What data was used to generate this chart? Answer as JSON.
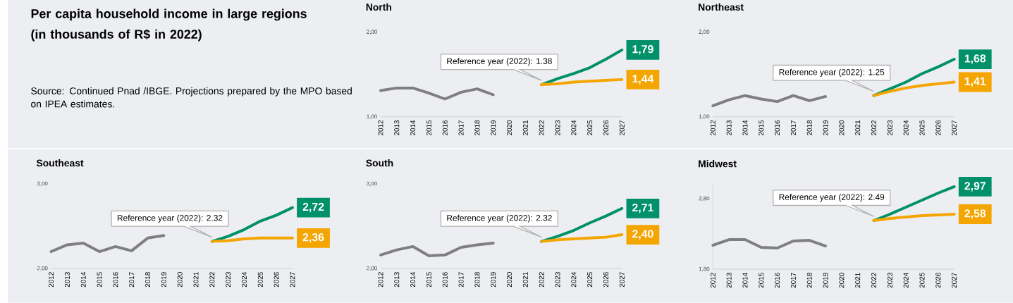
{
  "chart_data": [
    {
      "type": "other",
      "title": "Per capita household income in large regions (in thousands of R$ in 2022)",
      "annotations": [
        "Source: Continued Pnad /IBGE. Projections prepared by the MPO based on IPEA estimates."
      ]
    },
    {
      "type": "line",
      "title": "North",
      "categories": [
        "2012",
        "2013",
        "2014",
        "2015",
        "2016",
        "2017",
        "2018",
        "2019",
        "2020",
        "2021",
        "2022",
        "2023",
        "2024",
        "2025",
        "2026",
        "2027"
      ],
      "ylim": [
        1.0,
        2.0
      ],
      "yticks": [
        {
          "value": 1.0,
          "label": "1,00"
        },
        {
          "value": 2.0,
          "label": "2,00"
        }
      ],
      "series": [
        {
          "color": "#7f7f7f",
          "values": [
            1.31,
            1.34,
            1.34,
            1.28,
            1.21,
            1.29,
            1.33,
            1.26,
            null,
            null,
            null,
            null,
            null,
            null,
            null,
            null
          ]
        },
        {
          "color": "#00906a",
          "values": [
            null,
            null,
            null,
            null,
            null,
            null,
            null,
            null,
            null,
            null,
            1.38,
            1.45,
            1.51,
            1.58,
            1.68,
            1.79
          ],
          "value_labels": [
            null,
            null,
            null,
            null,
            null,
            null,
            null,
            null,
            null,
            null,
            null,
            null,
            null,
            null,
            null,
            "1,79"
          ]
        },
        {
          "color": "#f5a500",
          "values": [
            null,
            null,
            null,
            null,
            null,
            null,
            null,
            null,
            null,
            null,
            1.38,
            1.39,
            1.41,
            1.42,
            1.43,
            1.44
          ],
          "value_labels": [
            null,
            null,
            null,
            null,
            null,
            null,
            null,
            null,
            null,
            null,
            null,
            null,
            null,
            null,
            null,
            "1,44"
          ]
        }
      ],
      "annotations": [
        {
          "text": "Reference year (2022): 1.38",
          "x": "2022",
          "y": 1.38
        }
      ]
    },
    {
      "type": "line",
      "title": "Northeast",
      "categories": [
        "2012",
        "2013",
        "2014",
        "2015",
        "2016",
        "2017",
        "2018",
        "2019",
        "2020",
        "2021",
        "2022",
        "2023",
        "2024",
        "2025",
        "2026",
        "2027"
      ],
      "ylim": [
        1.0,
        2.0
      ],
      "yticks": [
        {
          "value": 1.0,
          "label": "1,00"
        },
        {
          "value": 2.0,
          "label": "2,00"
        }
      ],
      "series": [
        {
          "color": "#7f7f7f",
          "values": [
            1.13,
            1.2,
            1.25,
            1.21,
            1.18,
            1.25,
            1.19,
            1.24,
            null,
            null,
            null,
            null,
            null,
            null,
            null,
            null
          ]
        },
        {
          "color": "#00906a",
          "values": [
            null,
            null,
            null,
            null,
            null,
            null,
            null,
            null,
            null,
            null,
            1.25,
            1.33,
            1.41,
            1.51,
            1.59,
            1.68
          ],
          "value_labels": [
            null,
            null,
            null,
            null,
            null,
            null,
            null,
            null,
            null,
            null,
            null,
            null,
            null,
            null,
            null,
            "1,68"
          ]
        },
        {
          "color": "#f5a500",
          "values": [
            null,
            null,
            null,
            null,
            null,
            null,
            null,
            null,
            null,
            null,
            1.25,
            1.3,
            1.34,
            1.37,
            1.39,
            1.41
          ],
          "value_labels": [
            null,
            null,
            null,
            null,
            null,
            null,
            null,
            null,
            null,
            null,
            null,
            null,
            null,
            null,
            null,
            "1,41"
          ]
        }
      ],
      "annotations": [
        {
          "text": "Reference year (2022): 1.25",
          "x": "2022",
          "y": 1.25
        }
      ]
    },
    {
      "type": "line",
      "title": "Southeast",
      "categories": [
        "2012",
        "2013",
        "2014",
        "2015",
        "2016",
        "2017",
        "2018",
        "2019",
        "2020",
        "2021",
        "2022",
        "2023",
        "2024",
        "2025",
        "2026",
        "2027"
      ],
      "ylim": [
        2.0,
        3.0
      ],
      "yticks": [
        {
          "value": 2.0,
          "label": "2,00"
        },
        {
          "value": 3.0,
          "label": "3,00"
        }
      ],
      "series": [
        {
          "color": "#7f7f7f",
          "values": [
            2.2,
            2.28,
            2.3,
            2.2,
            2.26,
            2.21,
            2.36,
            2.39,
            null,
            null,
            null,
            null,
            null,
            null,
            null,
            null
          ]
        },
        {
          "color": "#00906a",
          "values": [
            null,
            null,
            null,
            null,
            null,
            null,
            null,
            null,
            null,
            null,
            2.32,
            2.38,
            2.46,
            2.56,
            2.63,
            2.72
          ],
          "value_labels": [
            null,
            null,
            null,
            null,
            null,
            null,
            null,
            null,
            null,
            null,
            null,
            null,
            null,
            null,
            null,
            "2,72"
          ]
        },
        {
          "color": "#f5a500",
          "values": [
            null,
            null,
            null,
            null,
            null,
            null,
            null,
            null,
            null,
            null,
            2.32,
            2.33,
            2.35,
            2.36,
            2.36,
            2.36
          ],
          "value_labels": [
            null,
            null,
            null,
            null,
            null,
            null,
            null,
            null,
            null,
            null,
            null,
            null,
            null,
            null,
            null,
            "2,36"
          ]
        }
      ],
      "annotations": [
        {
          "text": "Reference year (2022): 2.32",
          "x": "2022",
          "y": 2.32
        }
      ]
    },
    {
      "type": "line",
      "title": "South",
      "categories": [
        "2012",
        "2013",
        "2014",
        "2015",
        "2016",
        "2017",
        "2018",
        "2019",
        "2020",
        "2021",
        "2022",
        "2023",
        "2024",
        "2025",
        "2026",
        "2027"
      ],
      "ylim": [
        2.0,
        3.0
      ],
      "yticks": [
        {
          "value": 2.0,
          "label": "2,00"
        },
        {
          "value": 3.0,
          "label": "3,00"
        }
      ],
      "series": [
        {
          "color": "#7f7f7f",
          "values": [
            2.16,
            2.22,
            2.26,
            2.15,
            2.16,
            2.25,
            2.28,
            2.3,
            null,
            null,
            null,
            null,
            null,
            null,
            null,
            null
          ]
        },
        {
          "color": "#00906a",
          "values": [
            null,
            null,
            null,
            null,
            null,
            null,
            null,
            null,
            null,
            null,
            2.32,
            2.38,
            2.45,
            2.54,
            2.62,
            2.71
          ],
          "value_labels": [
            null,
            null,
            null,
            null,
            null,
            null,
            null,
            null,
            null,
            null,
            null,
            null,
            null,
            null,
            null,
            "2,71"
          ]
        },
        {
          "color": "#f5a500",
          "values": [
            null,
            null,
            null,
            null,
            null,
            null,
            null,
            null,
            null,
            null,
            2.32,
            2.34,
            2.35,
            2.36,
            2.37,
            2.4
          ],
          "value_labels": [
            null,
            null,
            null,
            null,
            null,
            null,
            null,
            null,
            null,
            null,
            null,
            null,
            null,
            null,
            null,
            "2,40"
          ]
        }
      ],
      "annotations": [
        {
          "text": "Reference year (2022): 2.32",
          "x": "2022",
          "y": 2.32
        }
      ]
    },
    {
      "type": "line",
      "title": "Midwest",
      "categories": [
        "2012",
        "2013",
        "2014",
        "2015",
        "2016",
        "2017",
        "2018",
        "2019",
        "2020",
        "2021",
        "2022",
        "2023",
        "2024",
        "2025",
        "2026",
        "2027"
      ],
      "ylim": [
        1.8,
        3.0
      ],
      "yticks": [
        {
          "value": 1.8,
          "label": "1,80"
        },
        {
          "value": 2.8,
          "label": "2,80"
        }
      ],
      "series": [
        {
          "color": "#7f7f7f",
          "values": [
            2.14,
            2.22,
            2.22,
            2.11,
            2.1,
            2.2,
            2.21,
            2.13,
            null,
            null,
            null,
            null,
            null,
            null,
            null,
            null
          ]
        },
        {
          "color": "#00906a",
          "values": [
            null,
            null,
            null,
            null,
            null,
            null,
            null,
            null,
            null,
            null,
            2.49,
            2.58,
            2.68,
            2.78,
            2.88,
            2.97
          ],
          "value_labels": [
            null,
            null,
            null,
            null,
            null,
            null,
            null,
            null,
            null,
            null,
            null,
            null,
            null,
            null,
            null,
            "2,97"
          ]
        },
        {
          "color": "#f5a500",
          "values": [
            null,
            null,
            null,
            null,
            null,
            null,
            null,
            null,
            null,
            null,
            2.49,
            2.52,
            2.54,
            2.56,
            2.57,
            2.58
          ],
          "value_labels": [
            null,
            null,
            null,
            null,
            null,
            null,
            null,
            null,
            null,
            null,
            null,
            null,
            null,
            null,
            null,
            "2,58"
          ]
        }
      ],
      "annotations": [
        {
          "text": "Reference year (2022): 2.49",
          "x": "2022",
          "y": 2.49
        }
      ]
    }
  ]
}
